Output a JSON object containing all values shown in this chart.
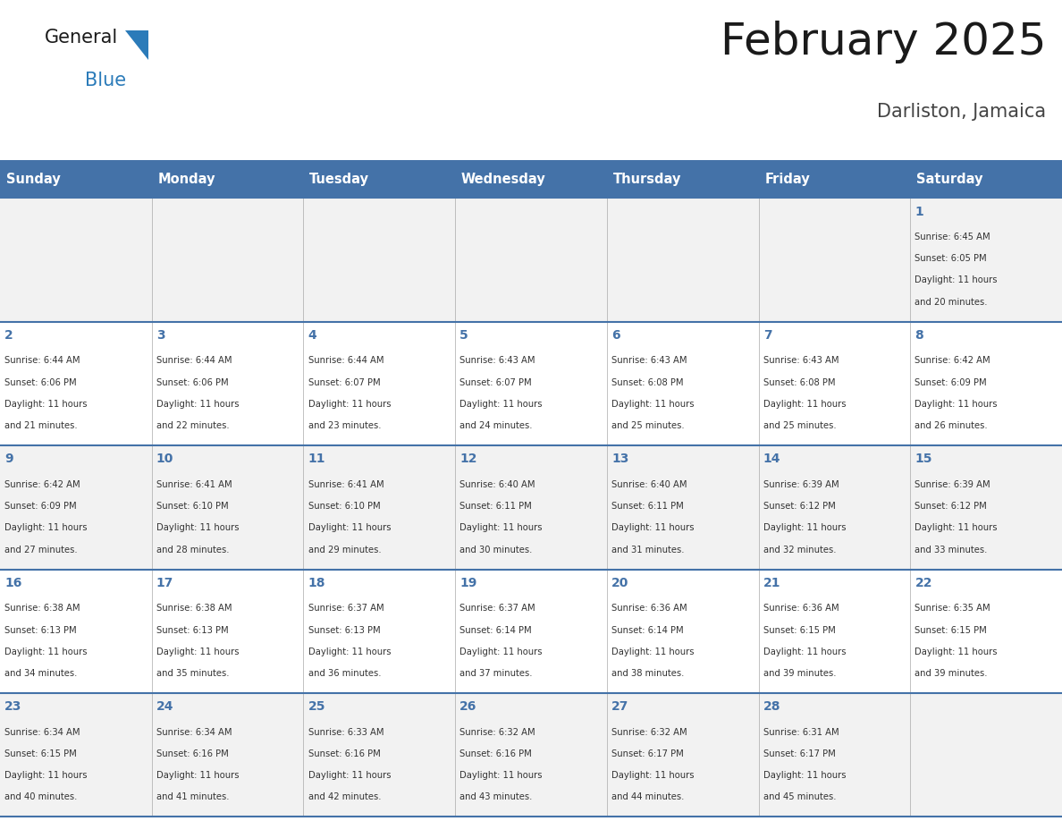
{
  "title": "February 2025",
  "subtitle": "Darliston, Jamaica",
  "header_color": "#4472A8",
  "header_text_color": "#FFFFFF",
  "cell_bg_row0": "#F2F2F2",
  "cell_bg_row1": "#FFFFFF",
  "cell_bg_row2": "#F2F2F2",
  "cell_bg_row3": "#FFFFFF",
  "cell_bg_row4": "#F2F2F2",
  "border_color": "#4472A8",
  "grid_color": "#AAAAAA",
  "day_names": [
    "Sunday",
    "Monday",
    "Tuesday",
    "Wednesday",
    "Thursday",
    "Friday",
    "Saturday"
  ],
  "title_color": "#1a1a1a",
  "subtitle_color": "#444444",
  "day_number_color": "#4472A8",
  "info_text_color": "#333333",
  "logo_general_color": "#1a1a1a",
  "logo_blue_color": "#2B7BB9",
  "logo_triangle_color": "#2B7BB9",
  "calendar": [
    [
      null,
      null,
      null,
      null,
      null,
      null,
      1
    ],
    [
      2,
      3,
      4,
      5,
      6,
      7,
      8
    ],
    [
      9,
      10,
      11,
      12,
      13,
      14,
      15
    ],
    [
      16,
      17,
      18,
      19,
      20,
      21,
      22
    ],
    [
      23,
      24,
      25,
      26,
      27,
      28,
      null
    ]
  ],
  "sun_data": {
    "1": {
      "rise": "6:45 AM",
      "set": "6:05 PM",
      "hours": 11,
      "mins": 20
    },
    "2": {
      "rise": "6:44 AM",
      "set": "6:06 PM",
      "hours": 11,
      "mins": 21
    },
    "3": {
      "rise": "6:44 AM",
      "set": "6:06 PM",
      "hours": 11,
      "mins": 22
    },
    "4": {
      "rise": "6:44 AM",
      "set": "6:07 PM",
      "hours": 11,
      "mins": 23
    },
    "5": {
      "rise": "6:43 AM",
      "set": "6:07 PM",
      "hours": 11,
      "mins": 24
    },
    "6": {
      "rise": "6:43 AM",
      "set": "6:08 PM",
      "hours": 11,
      "mins": 25
    },
    "7": {
      "rise": "6:43 AM",
      "set": "6:08 PM",
      "hours": 11,
      "mins": 25
    },
    "8": {
      "rise": "6:42 AM",
      "set": "6:09 PM",
      "hours": 11,
      "mins": 26
    },
    "9": {
      "rise": "6:42 AM",
      "set": "6:09 PM",
      "hours": 11,
      "mins": 27
    },
    "10": {
      "rise": "6:41 AM",
      "set": "6:10 PM",
      "hours": 11,
      "mins": 28
    },
    "11": {
      "rise": "6:41 AM",
      "set": "6:10 PM",
      "hours": 11,
      "mins": 29
    },
    "12": {
      "rise": "6:40 AM",
      "set": "6:11 PM",
      "hours": 11,
      "mins": 30
    },
    "13": {
      "rise": "6:40 AM",
      "set": "6:11 PM",
      "hours": 11,
      "mins": 31
    },
    "14": {
      "rise": "6:39 AM",
      "set": "6:12 PM",
      "hours": 11,
      "mins": 32
    },
    "15": {
      "rise": "6:39 AM",
      "set": "6:12 PM",
      "hours": 11,
      "mins": 33
    },
    "16": {
      "rise": "6:38 AM",
      "set": "6:13 PM",
      "hours": 11,
      "mins": 34
    },
    "17": {
      "rise": "6:38 AM",
      "set": "6:13 PM",
      "hours": 11,
      "mins": 35
    },
    "18": {
      "rise": "6:37 AM",
      "set": "6:13 PM",
      "hours": 11,
      "mins": 36
    },
    "19": {
      "rise": "6:37 AM",
      "set": "6:14 PM",
      "hours": 11,
      "mins": 37
    },
    "20": {
      "rise": "6:36 AM",
      "set": "6:14 PM",
      "hours": 11,
      "mins": 38
    },
    "21": {
      "rise": "6:36 AM",
      "set": "6:15 PM",
      "hours": 11,
      "mins": 39
    },
    "22": {
      "rise": "6:35 AM",
      "set": "6:15 PM",
      "hours": 11,
      "mins": 39
    },
    "23": {
      "rise": "6:34 AM",
      "set": "6:15 PM",
      "hours": 11,
      "mins": 40
    },
    "24": {
      "rise": "6:34 AM",
      "set": "6:16 PM",
      "hours": 11,
      "mins": 41
    },
    "25": {
      "rise": "6:33 AM",
      "set": "6:16 PM",
      "hours": 11,
      "mins": 42
    },
    "26": {
      "rise": "6:32 AM",
      "set": "6:16 PM",
      "hours": 11,
      "mins": 43
    },
    "27": {
      "rise": "6:32 AM",
      "set": "6:17 PM",
      "hours": 11,
      "mins": 44
    },
    "28": {
      "rise": "6:31 AM",
      "set": "6:17 PM",
      "hours": 11,
      "mins": 45
    }
  }
}
